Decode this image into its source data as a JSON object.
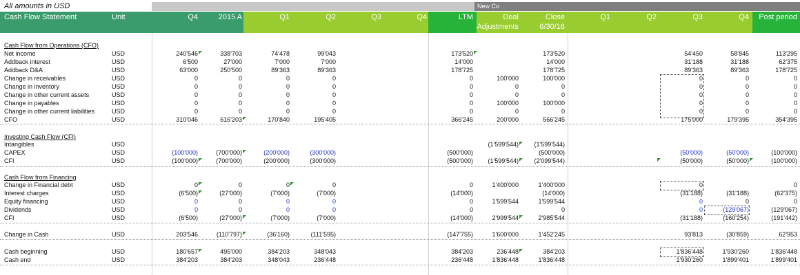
{
  "top_note": "All amounts in USD",
  "new_co_label": "New Co",
  "header": {
    "title": "Cash Flow Statement",
    "unit": "Unit",
    "cols": [
      "Q4",
      "2015 A",
      "Q1",
      "Q2",
      "Q3",
      "Q4",
      "LTM",
      "Deal",
      "Close",
      "Q1",
      "Q2",
      "Q3",
      "Q4",
      "Post period"
    ],
    "deal_line2": "Adjustments",
    "close_line2": "6/30/16"
  },
  "colors": {
    "green_dark": "#3a9b6c",
    "green_light": "#99cc2e",
    "green_bright": "#27b33a",
    "gray_band": "#c8c8c8",
    "gray_dark": "#7f7f7f",
    "blue_text": "#2233cc"
  },
  "sections": {
    "cfo": "Cash Flow from Operations (CFO)",
    "cfi": "Investing Cash Flow (CFI)",
    "cff": "Cash Flow from Financing"
  },
  "rows": [
    {
      "label": "Net income",
      "unit": "USD",
      "v": [
        "240'546",
        "338'703",
        "74'478",
        "99'043",
        "",
        "",
        "173'520",
        "",
        "173'520",
        "",
        "",
        "54'450",
        "58'845",
        "113'295"
      ]
    },
    {
      "label": "Addback interest",
      "unit": "USD",
      "v": [
        "6'500",
        "27'000",
        "7'000",
        "7'000",
        "",
        "",
        "14'000",
        "",
        "14'000",
        "",
        "",
        "31'188",
        "31'188",
        "62'375"
      ]
    },
    {
      "label": "Addback D&A",
      "unit": "USD",
      "v": [
        "63'000",
        "250'500",
        "89'363",
        "89'363",
        "",
        "",
        "178'725",
        "",
        "178'725",
        "",
        "",
        "89'363",
        "89'363",
        "178'725"
      ]
    },
    {
      "label": "Change in receivables",
      "unit": "USD",
      "v": [
        "0",
        "0",
        "0",
        "0",
        "",
        "",
        "0",
        "100'000",
        "100'000",
        "",
        "",
        "0",
        "0",
        "0"
      ]
    },
    {
      "label": "Change in inventory",
      "unit": "USD",
      "v": [
        "0",
        "0",
        "0",
        "0",
        "",
        "",
        "0",
        "0",
        "0",
        "",
        "",
        "0",
        "0",
        "0"
      ]
    },
    {
      "label": "Change in other current assets",
      "unit": "USD",
      "v": [
        "0",
        "0",
        "0",
        "0",
        "",
        "",
        "0",
        "0",
        "0",
        "",
        "",
        "0",
        "0",
        "0"
      ]
    },
    {
      "label": "Change in payables",
      "unit": "USD",
      "v": [
        "0",
        "0",
        "0",
        "0",
        "",
        "",
        "0",
        "100'000",
        "100'000",
        "",
        "",
        "0",
        "0",
        "0"
      ]
    },
    {
      "label": "Change in other current liabilities",
      "unit": "USD",
      "v": [
        "0",
        "0",
        "0",
        "0",
        "",
        "",
        "0",
        "0",
        "0",
        "",
        "",
        "0",
        "0",
        "0"
      ]
    },
    {
      "label": "CFO",
      "unit": "USD",
      "v": [
        "310'046",
        "616'203",
        "170'840",
        "195'405",
        "",
        "",
        "366'245",
        "200'000",
        "566'245",
        "",
        "",
        "175'000",
        "179'395",
        "354'395"
      ]
    },
    {
      "label": "Intangibles",
      "unit": "USD",
      "v": [
        "",
        "",
        "",
        "",
        "",
        "",
        "",
        "(1'599'544)",
        "(1'599'544)",
        "",
        "",
        "",
        "",
        ""
      ]
    },
    {
      "label": "CAPEX",
      "unit": "USD",
      "v": [
        "(100'000)",
        "(700'000)",
        "(200'000)",
        "(300'000)",
        "",
        "",
        "(500'000)",
        "",
        "(500'000)",
        "",
        "",
        "(50'000)",
        "(50'000)",
        "(100'000)"
      ]
    },
    {
      "label": "CFI",
      "unit": "USD",
      "v": [
        "(100'000)",
        "(700'000)",
        "(200'000)",
        "(300'000)",
        "",
        "",
        "(500'000)",
        "(1'599'544)",
        "(2'099'544)",
        "",
        "",
        "(50'000)",
        "(50'000)",
        "(100'000)"
      ]
    },
    {
      "label": "Change in Financial debt",
      "unit": "USD",
      "v": [
        "0",
        "0",
        "0",
        "0",
        "",
        "",
        "0",
        "1'400'000",
        "1'400'000",
        "",
        "",
        "0",
        "",
        "0"
      ]
    },
    {
      "label": "Interest charges",
      "unit": "USD",
      "v": [
        "(6'500)",
        "(27'000)",
        "(7'000)",
        "(7'000)",
        "",
        "",
        "(14'000)",
        "",
        "(14'000)",
        "",
        "",
        "(31'188)",
        "(31'188)",
        "(62'375)"
      ]
    },
    {
      "label": "Equity financing",
      "unit": "USD",
      "v": [
        "0",
        "0",
        "0",
        "0",
        "",
        "",
        "0",
        "1'599'544",
        "1'599'544",
        "",
        "",
        "0",
        "0",
        "0"
      ]
    },
    {
      "label": "Dividends",
      "unit": "USD",
      "v": [
        "0",
        "0",
        "0",
        "0",
        "",
        "",
        "0",
        "",
        "0",
        "",
        "",
        "0",
        "(129'067)",
        "(129'067)"
      ]
    },
    {
      "label": "CFI",
      "unit": "USD",
      "v": [
        "(6'500)",
        "(27'000)",
        "(7'000)",
        "(7'000)",
        "",
        "",
        "(14'000)",
        "2'999'544",
        "2'985'544",
        "",
        "",
        "(31'188)",
        "(160'254)",
        "(191'442)"
      ]
    },
    {
      "label": "Change in Cash",
      "unit": "USD",
      "v": [
        "203'546",
        "(110'797)",
        "(36'160)",
        "(111'595)",
        "",
        "",
        "(147'755)",
        "1'600'000",
        "1'452'245",
        "",
        "",
        "93'813",
        "(30'859)",
        "62'953"
      ]
    },
    {
      "label": "Cash beginning",
      "unit": "USD",
      "v": [
        "180'657",
        "495'000",
        "384'203",
        "348'043",
        "",
        "",
        "384'203",
        "236'448",
        "384'203",
        "",
        "",
        "1'836'448",
        "1'930'260",
        "1'836'448"
      ]
    },
    {
      "label": "Cash end",
      "unit": "USD",
      "v": [
        "384'203",
        "384'203",
        "348'043",
        "236'448",
        "",
        "",
        "236'448",
        "1'836'448",
        "1'836'448",
        "",
        "",
        "1'930'260",
        "1'899'401",
        "1'899'401"
      ]
    }
  ]
}
